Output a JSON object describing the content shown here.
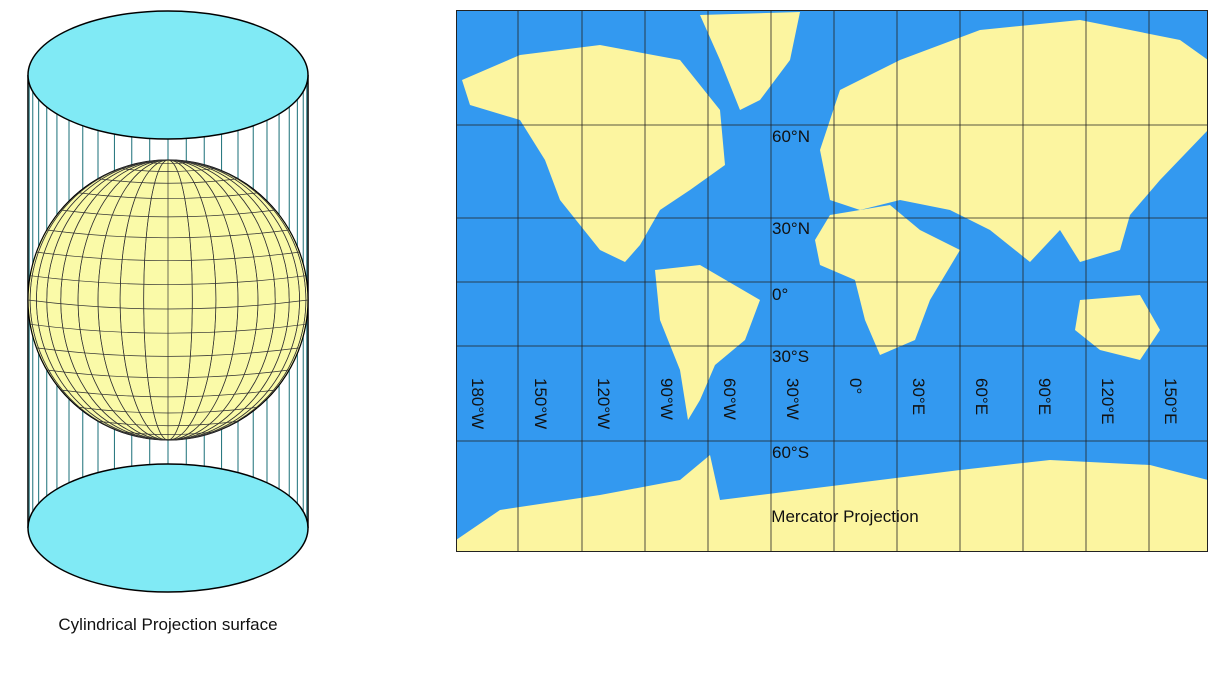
{
  "cylinder_figure": {
    "caption": "Cylindrical Projection surface"
  },
  "map": {
    "title": "Mercator Projection",
    "latitude_labels": [
      "60°N",
      "30°N",
      "0°",
      "30°S",
      "60°S"
    ],
    "longitude_labels": [
      "180°W",
      "150°W",
      "120°W",
      "90°W",
      "60°W",
      "30°W",
      "0°",
      "30°E",
      "60°E",
      "90°E",
      "120°E",
      "150°E"
    ]
  }
}
